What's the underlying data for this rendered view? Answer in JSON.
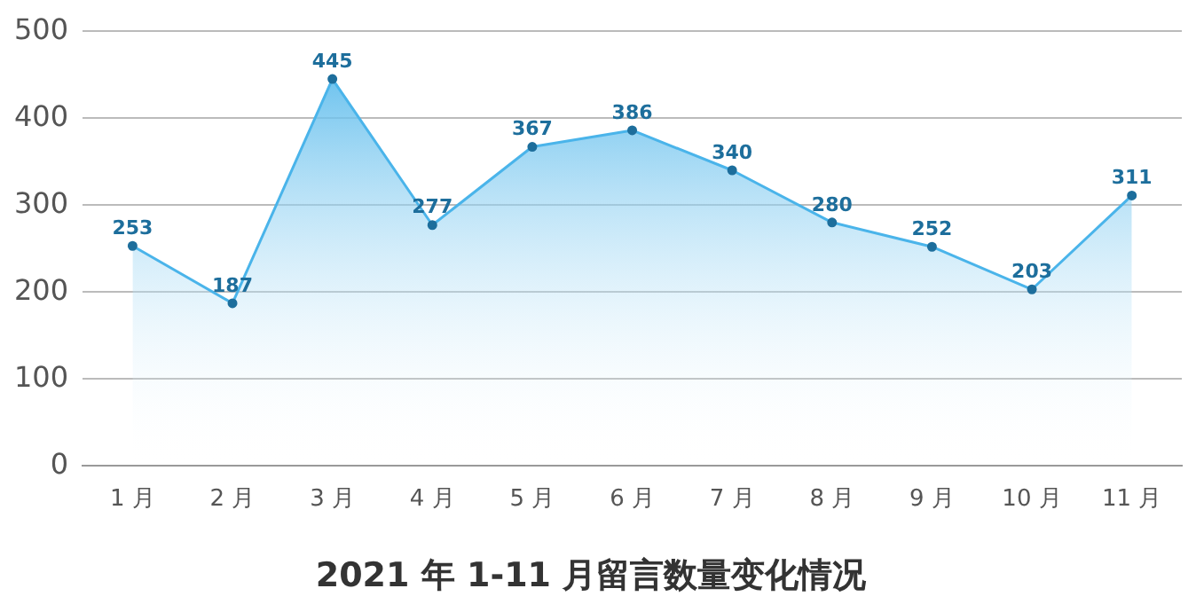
{
  "chart_data": {
    "type": "area",
    "title": "2021 年 1-11 月留言数量变化情况",
    "categories": [
      "1 月",
      "2 月",
      "3 月",
      "4 月",
      "5 月",
      "6 月",
      "7 月",
      "8 月",
      "9 月",
      "10 月",
      "11 月"
    ],
    "series": [
      {
        "color": "#4ab4ea",
        "values": [
          253,
          187,
          445,
          277,
          367,
          386,
          340,
          280,
          252,
          203,
          311
        ]
      }
    ],
    "ylim": [
      0,
      500
    ],
    "yticks": [
      0,
      100,
      200,
      300,
      400,
      500
    ],
    "grid": "y",
    "legend": false,
    "marker": "circle",
    "data_labels": true
  }
}
